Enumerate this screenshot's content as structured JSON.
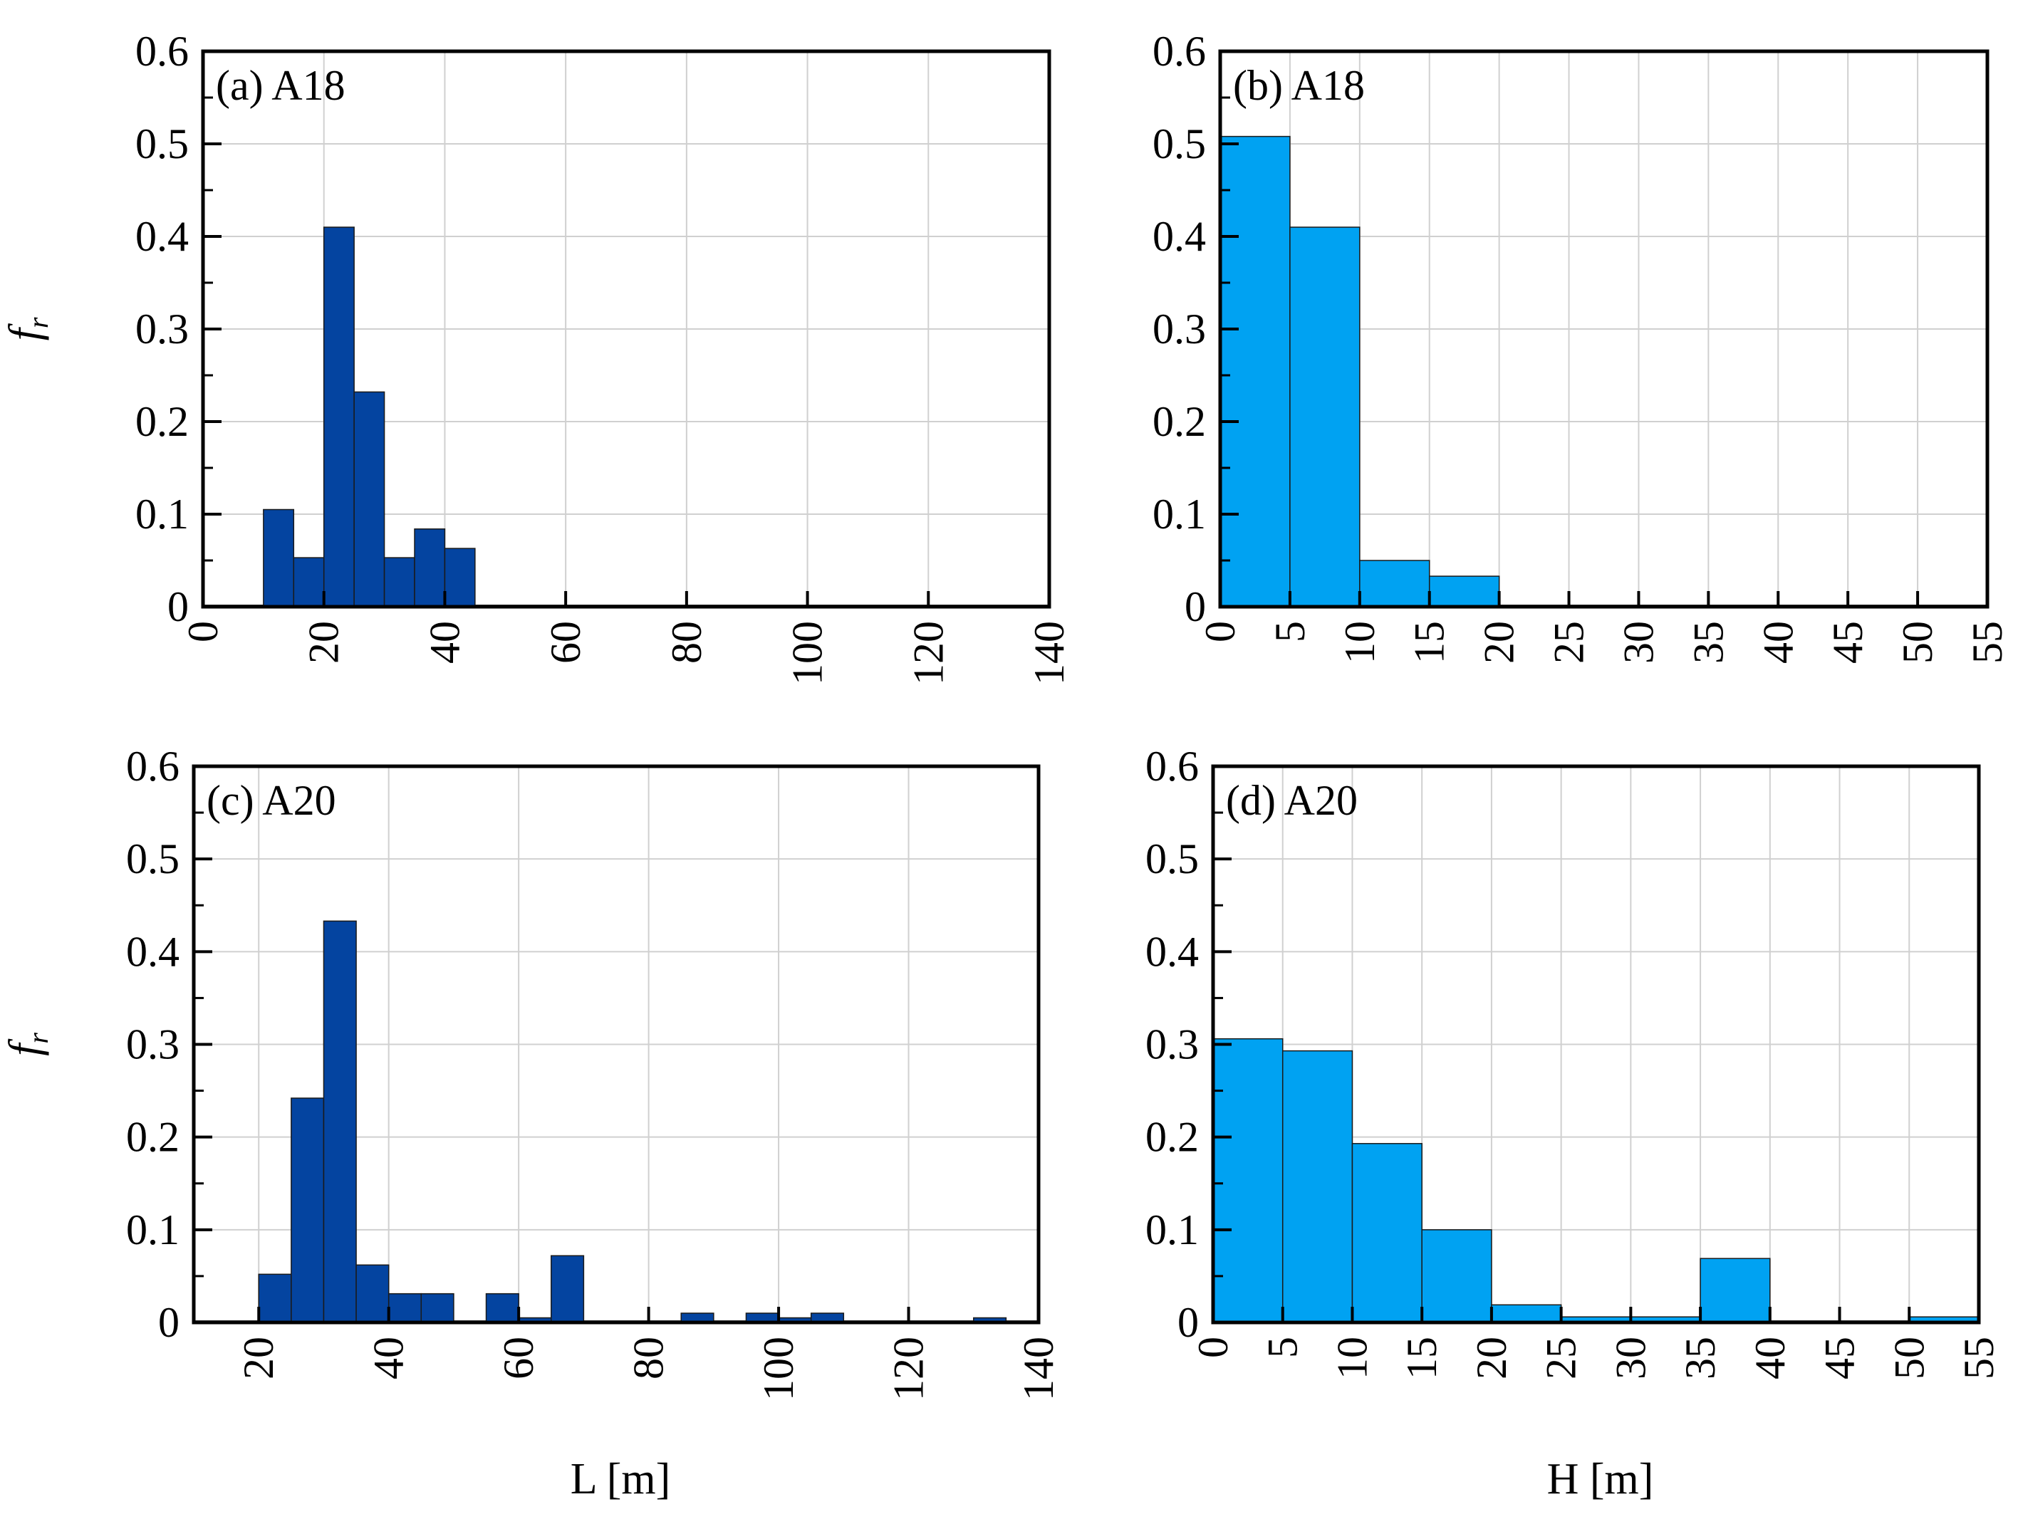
{
  "figure": {
    "y_axis_label_main": "f",
    "y_axis_label_sub": "r"
  },
  "colors": {
    "length_bars": "#0444A0",
    "height_bars": "#00A2F2",
    "bar_edge": "#1a1a1a",
    "grid": "#d0d0d0",
    "axis": "#000000"
  },
  "chart_data": [
    {
      "id": "a",
      "type": "bar",
      "panel_label": "(a) A18",
      "xlabel": "",
      "ylabel": "f_r",
      "xlim": [
        0,
        140
      ],
      "ylim": [
        0,
        0.6
      ],
      "xticks": [
        0,
        20,
        40,
        60,
        80,
        100,
        120,
        140
      ],
      "yticks": [
        0,
        0.1,
        0.2,
        0.3,
        0.4,
        0.5,
        0.6
      ],
      "ytick_labels": [
        "0",
        "0.1",
        "0.2",
        "0.3",
        "0.4",
        "0.5",
        "0.6"
      ],
      "bin_width": 5,
      "bins": [
        [
          10,
          0.105
        ],
        [
          15,
          0.053
        ],
        [
          20,
          0.41
        ],
        [
          25,
          0.232
        ],
        [
          30,
          0.053
        ],
        [
          35,
          0.084
        ],
        [
          40,
          0.063
        ]
      ],
      "color": "length_bars"
    },
    {
      "id": "b",
      "type": "bar",
      "panel_label": "(b) A18",
      "xlabel": "",
      "ylabel": "",
      "xlim": [
        0,
        55
      ],
      "ylim": [
        0,
        0.6
      ],
      "xticks": [
        0,
        5,
        10,
        15,
        20,
        25,
        30,
        35,
        40,
        45,
        50,
        55
      ],
      "yticks": [
        0,
        0.1,
        0.2,
        0.3,
        0.4,
        0.5,
        0.6
      ],
      "ytick_labels": [
        "0",
        "0.1",
        "0.2",
        "0.3",
        "0.4",
        "0.5",
        "0.6"
      ],
      "bin_width": 5,
      "bins": [
        [
          0,
          0.508
        ],
        [
          5,
          0.41
        ],
        [
          10,
          0.05
        ],
        [
          15,
          0.033
        ]
      ],
      "color": "height_bars"
    },
    {
      "id": "c",
      "type": "bar",
      "panel_label": "(c) A20",
      "xlabel": "L [m]",
      "ylabel": "f_r",
      "xlim": [
        10,
        140
      ],
      "ylim": [
        0,
        0.6
      ],
      "xticks": [
        20,
        40,
        60,
        80,
        100,
        120,
        140
      ],
      "yticks": [
        0,
        0.1,
        0.2,
        0.3,
        0.4,
        0.5,
        0.6
      ],
      "ytick_labels": [
        "0",
        "0.1",
        "0.2",
        "0.3",
        "0.4",
        "0.5",
        "0.6"
      ],
      "bin_width": 5,
      "bins": [
        [
          20,
          0.052
        ],
        [
          25,
          0.242
        ],
        [
          30,
          0.433
        ],
        [
          35,
          0.062
        ],
        [
          40,
          0.031
        ],
        [
          45,
          0.031
        ],
        [
          55,
          0.031
        ],
        [
          60,
          0.005
        ],
        [
          65,
          0.072
        ],
        [
          85,
          0.01
        ],
        [
          95,
          0.01
        ],
        [
          100,
          0.005
        ],
        [
          105,
          0.01
        ],
        [
          130,
          0.005
        ]
      ],
      "color": "length_bars"
    },
    {
      "id": "d",
      "type": "bar",
      "panel_label": "(d) A20",
      "xlabel": "H [m]",
      "ylabel": "",
      "xlim": [
        0,
        55
      ],
      "ylim": [
        0,
        0.6
      ],
      "xticks": [
        0,
        5,
        10,
        15,
        20,
        25,
        30,
        35,
        40,
        45,
        50,
        55
      ],
      "yticks": [
        0,
        0.1,
        0.2,
        0.3,
        0.4,
        0.5,
        0.6
      ],
      "ytick_labels": [
        "0",
        "0.1",
        "0.2",
        "0.3",
        "0.4",
        "0.5",
        "0.6"
      ],
      "bin_width": 5,
      "bins": [
        [
          0,
          0.306
        ],
        [
          5,
          0.293
        ],
        [
          10,
          0.193
        ],
        [
          15,
          0.1
        ],
        [
          20,
          0.019
        ],
        [
          25,
          0.006
        ],
        [
          30,
          0.006
        ],
        [
          35,
          0.069
        ],
        [
          50,
          0.006
        ]
      ],
      "color": "height_bars"
    }
  ]
}
